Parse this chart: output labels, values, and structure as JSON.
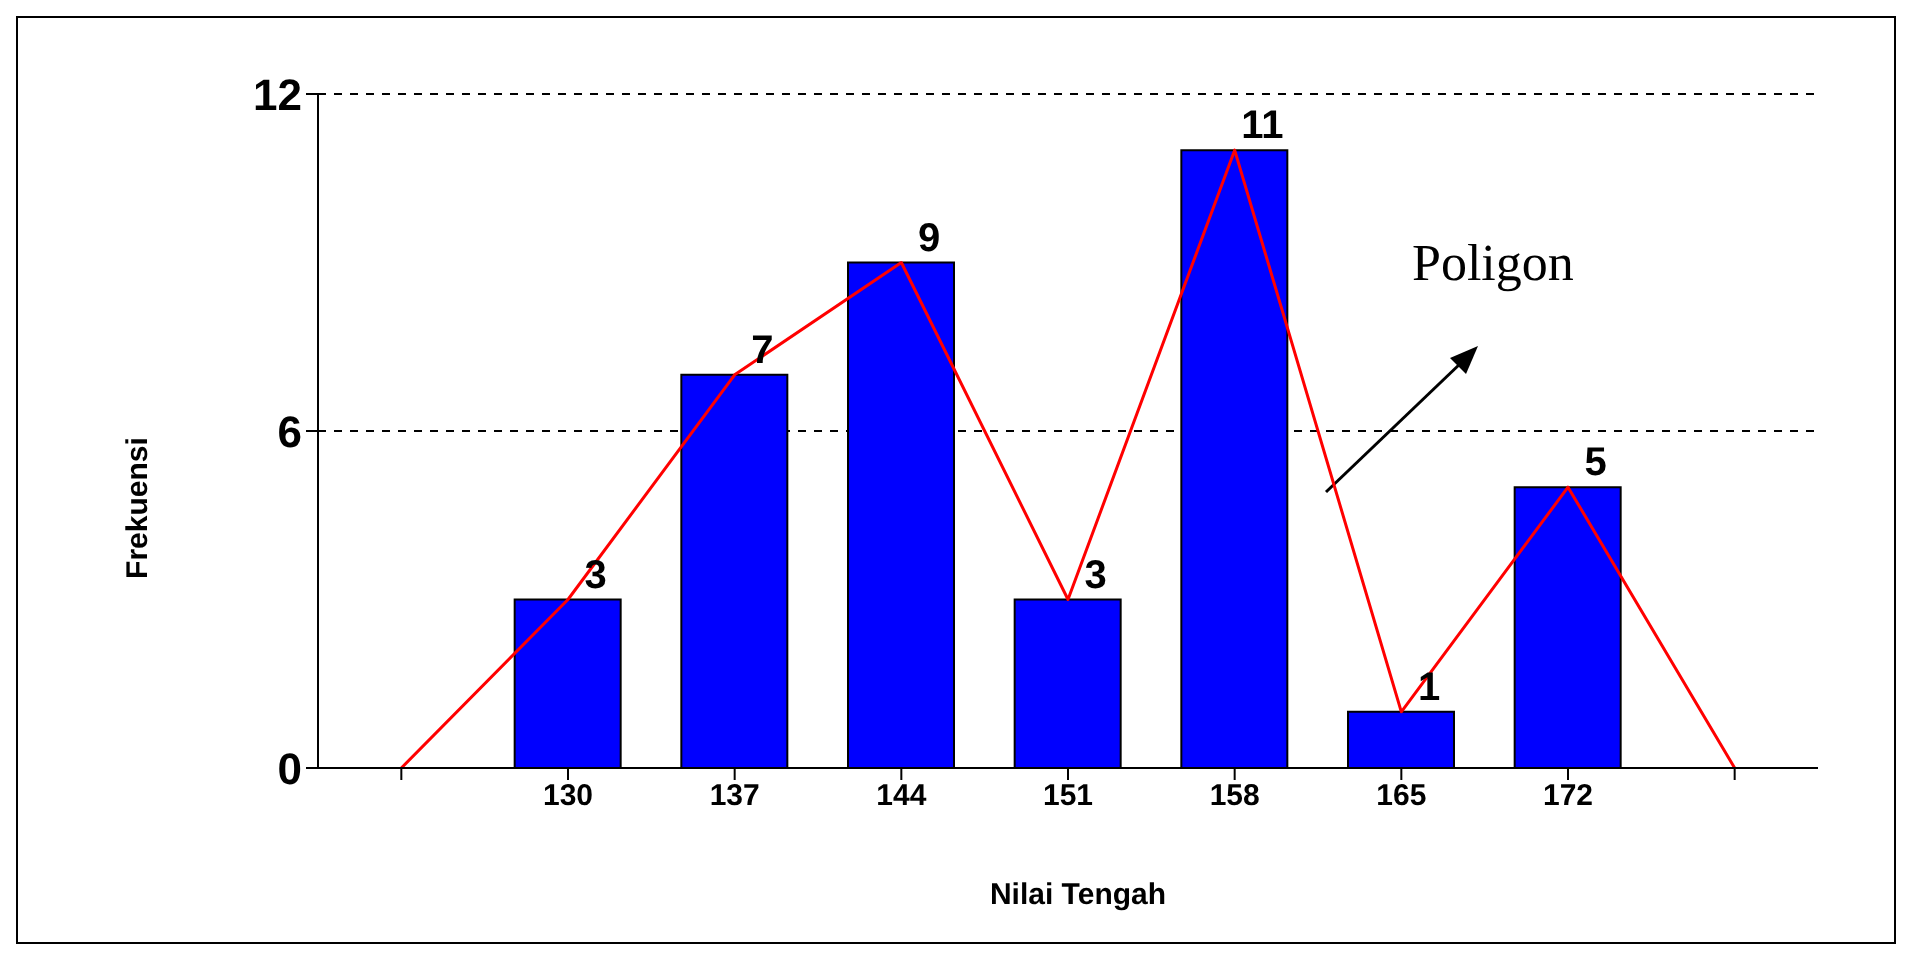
{
  "chart_data": {
    "type": "bar",
    "xlabel": "Nilai Tengah",
    "ylabel": "Frekuensi",
    "categories": [
      null,
      "130",
      "137",
      "144",
      "151",
      "158",
      "165",
      "172",
      null
    ],
    "series": [
      {
        "color": "#0000ff",
        "values": [
          null,
          3,
          7,
          9,
          3,
          11,
          1,
          5,
          null
        ],
        "value_labels": [
          null,
          "3",
          "7",
          "9",
          "3",
          "11",
          "1",
          "5",
          null
        ]
      },
      {
        "type": "line",
        "color": "#ff0000",
        "values": [
          0,
          3,
          7,
          9,
          3,
          11,
          1,
          5,
          0
        ]
      }
    ],
    "ylim": [
      0,
      12
    ],
    "yticks": [
      0,
      6,
      12
    ],
    "grid": "y",
    "marker": "none",
    "annotations": [
      "Poligon"
    ]
  }
}
